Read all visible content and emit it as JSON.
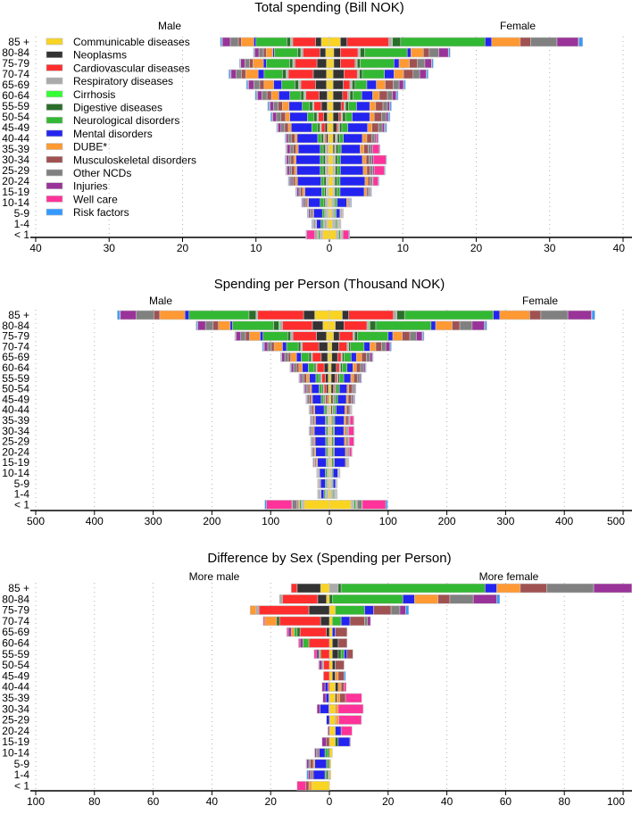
{
  "categories": [
    "Communicable diseases",
    "Neoplasms",
    "Cardiovascular diseases",
    "Respiratory diseases",
    "Cirrhosis",
    "Digestive diseases",
    "Neurological disorders",
    "Mental disorders",
    "DUBE*",
    "Musculoskeletal disorders",
    "Other NCDs",
    "Injuries",
    "Well care",
    "Risk factors"
  ],
  "colors": [
    "#f9d423",
    "#333333",
    "#ff2e2e",
    "#aaaaaa",
    "#33ff33",
    "#2b6e2b",
    "#33b833",
    "#2424f0",
    "#ff9933",
    "#a05252",
    "#808080",
    "#993399",
    "#ff3399",
    "#3399ff"
  ],
  "ages": [
    "85 +",
    "80-84",
    "75-79",
    "70-74",
    "65-69",
    "60-64",
    "55-59",
    "50-54",
    "45-49",
    "40-44",
    "35-39",
    "30-34",
    "25-29",
    "20-24",
    "15-19",
    "10-14",
    "5-9",
    "1-4",
    "< 1"
  ],
  "chart_data": [
    {
      "type": "bar",
      "title": "Total spending (Bill NOK)",
      "left_label": "Male",
      "right_label": "Female",
      "xlim": [
        -40,
        40
      ],
      "tick_labels": [
        "40",
        "30",
        "20",
        "10",
        "0",
        "10",
        "20",
        "30",
        "40"
      ],
      "grid": true,
      "legend": "top-left",
      "male": [
        [
          1.1,
          0.8,
          3.1,
          0.2,
          0.1,
          0.5,
          4.2,
          0.3,
          1.7,
          0.4,
          1.1,
          1.1,
          0.05,
          0.2
        ],
        [
          0.5,
          0.8,
          2.3,
          0.2,
          0.1,
          0.4,
          3.2,
          0.2,
          0.9,
          0.4,
          0.6,
          0.6,
          0.05,
          0.1
        ],
        [
          0.4,
          1.3,
          3.0,
          0.2,
          0.1,
          0.4,
          3.2,
          0.4,
          1.4,
          0.5,
          0.6,
          0.6,
          0.05,
          0.1
        ],
        [
          0.4,
          1.8,
          3.4,
          0.2,
          0.1,
          0.5,
          2.5,
          0.8,
          1.7,
          0.6,
          0.7,
          0.7,
          0.1,
          0.2
        ],
        [
          0.4,
          1.5,
          2.0,
          0.2,
          0.1,
          0.5,
          1.8,
          1.1,
          1.3,
          0.6,
          0.8,
          0.7,
          0.1,
          0.2
        ],
        [
          0.3,
          1.1,
          1.8,
          0.2,
          0.1,
          0.4,
          1.5,
          1.5,
          1.0,
          0.6,
          0.7,
          0.6,
          0.1,
          0.2
        ],
        [
          0.3,
          0.8,
          1.0,
          0.1,
          0.1,
          0.4,
          1.0,
          1.8,
          0.9,
          0.6,
          0.6,
          0.5,
          0.1,
          0.2
        ],
        [
          0.3,
          0.5,
          0.7,
          0.1,
          0.1,
          0.4,
          0.9,
          2.4,
          0.6,
          0.6,
          0.6,
          0.5,
          0.1,
          0.2
        ],
        [
          0.3,
          0.3,
          0.5,
          0.1,
          0.1,
          0.3,
          0.8,
          2.8,
          0.4,
          0.5,
          0.5,
          0.4,
          0.1,
          0.1
        ],
        [
          0.2,
          0.2,
          0.2,
          0.1,
          0.1,
          0.3,
          0.5,
          2.8,
          0.3,
          0.5,
          0.4,
          0.3,
          0.05,
          0.1
        ],
        [
          0.2,
          0.1,
          0.1,
          0.1,
          0.05,
          0.3,
          0.4,
          3.0,
          0.3,
          0.4,
          0.4,
          0.4,
          0.1,
          0.1
        ],
        [
          0.2,
          0.1,
          0.1,
          0.1,
          0.05,
          0.3,
          0.4,
          3.3,
          0.3,
          0.4,
          0.3,
          0.3,
          0.1,
          0.1
        ],
        [
          0.2,
          0.1,
          0.1,
          0.1,
          0.05,
          0.3,
          0.4,
          3.2,
          0.3,
          0.4,
          0.3,
          0.3,
          0.1,
          0.1
        ],
        [
          0.2,
          0.05,
          0.05,
          0.1,
          0.05,
          0.3,
          0.4,
          3.2,
          0.3,
          0.3,
          0.3,
          0.2,
          0.05,
          0.1
        ],
        [
          0.2,
          0.05,
          0.05,
          0.1,
          0.05,
          0.2,
          0.4,
          2.3,
          0.3,
          0.3,
          0.2,
          0.3,
          0.05,
          0.1
        ],
        [
          0.2,
          0.05,
          0.05,
          0.2,
          0.05,
          0.2,
          0.5,
          1.6,
          0.2,
          0.2,
          0.2,
          0.2,
          0.05,
          0.1
        ],
        [
          0.2,
          0.05,
          0.05,
          0.2,
          0.05,
          0.1,
          0.3,
          1.2,
          0.1,
          0.2,
          0.2,
          0.2,
          0.05,
          0.1
        ],
        [
          0.3,
          0.05,
          0.05,
          0.3,
          0.05,
          0.1,
          0.3,
          0.6,
          0.1,
          0.1,
          0.2,
          0.1,
          0.05,
          0.1
        ],
        [
          0.9,
          0.05,
          0.1,
          0.1,
          0.05,
          0.1,
          0.2,
          0.05,
          0.1,
          0.1,
          0.2,
          0.05,
          1.1,
          0.1
        ]
      ],
      "female": [
        [
          1.5,
          0.9,
          5.7,
          0.4,
          0.1,
          1.1,
          11.5,
          0.9,
          3.9,
          1.4,
          3.6,
          2.9,
          0.1,
          0.5
        ],
        [
          0.6,
          0.9,
          2.4,
          0.2,
          0.1,
          0.6,
          5.8,
          0.5,
          1.7,
          0.8,
          1.3,
          1.3,
          0.05,
          0.2
        ],
        [
          0.6,
          0.9,
          2.0,
          0.2,
          0.1,
          0.4,
          4.6,
          0.7,
          1.4,
          1.1,
          1.0,
          0.9,
          0.05,
          0.2
        ],
        [
          0.5,
          1.5,
          1.8,
          0.2,
          0.1,
          0.4,
          3.0,
          1.3,
          1.3,
          1.3,
          0.9,
          0.9,
          0.05,
          0.2
        ],
        [
          0.5,
          1.4,
          0.9,
          0.2,
          0.1,
          0.4,
          1.6,
          1.3,
          1.2,
          1.1,
          0.8,
          0.6,
          0.05,
          0.2
        ],
        [
          0.5,
          1.3,
          0.7,
          0.2,
          0.1,
          0.4,
          1.2,
          1.5,
          0.9,
          1.1,
          0.7,
          0.5,
          0.05,
          0.2
        ],
        [
          0.5,
          1.1,
          0.4,
          0.1,
          0.1,
          0.4,
          1.1,
          1.8,
          0.8,
          1.0,
          0.6,
          0.3,
          0.05,
          0.2
        ],
        [
          0.5,
          0.8,
          0.3,
          0.1,
          0.1,
          0.4,
          0.9,
          2.4,
          0.6,
          1.0,
          0.6,
          0.3,
          0.05,
          0.2
        ],
        [
          0.5,
          0.5,
          0.2,
          0.1,
          0.1,
          0.3,
          0.8,
          2.7,
          0.6,
          0.9,
          0.5,
          0.3,
          0.1,
          0.2
        ],
        [
          0.5,
          0.3,
          0.1,
          0.1,
          0.1,
          0.3,
          0.5,
          2.6,
          0.6,
          0.7,
          0.4,
          0.2,
          0.2,
          0.1
        ],
        [
          0.5,
          0.2,
          0.05,
          0.1,
          0.05,
          0.3,
          0.4,
          2.6,
          0.5,
          0.6,
          0.4,
          0.2,
          0.9,
          0.1
        ],
        [
          0.5,
          0.1,
          0.05,
          0.1,
          0.05,
          0.3,
          0.4,
          3.0,
          0.5,
          0.4,
          0.4,
          0.2,
          1.7,
          0.1
        ],
        [
          0.5,
          0.1,
          0.05,
          0.1,
          0.05,
          0.3,
          0.4,
          3.1,
          0.5,
          0.4,
          0.4,
          0.2,
          1.4,
          0.1
        ],
        [
          0.5,
          0.05,
          0.05,
          0.1,
          0.05,
          0.3,
          0.4,
          3.4,
          0.4,
          0.3,
          0.3,
          0.1,
          0.7,
          0.1
        ],
        [
          0.5,
          0.05,
          0.05,
          0.1,
          0.05,
          0.3,
          0.4,
          3.3,
          0.3,
          0.2,
          0.2,
          0.1,
          0.1,
          0.1
        ],
        [
          0.3,
          0.05,
          0.05,
          0.2,
          0.05,
          0.1,
          0.3,
          1.3,
          0.2,
          0.1,
          0.1,
          0.1,
          0.05,
          0.1
        ],
        [
          0.3,
          0.05,
          0.05,
          0.2,
          0.05,
          0.1,
          0.2,
          0.5,
          0.1,
          0.1,
          0.1,
          0.05,
          0.05,
          0.05
        ],
        [
          0.4,
          0.05,
          0.05,
          0.2,
          0.05,
          0.1,
          0.2,
          0.1,
          0.1,
          0.05,
          0.1,
          0.05,
          0.05,
          0.05
        ],
        [
          0.9,
          0.05,
          0.1,
          0.1,
          0.05,
          0.1,
          0.2,
          0.05,
          0.1,
          0.05,
          0.1,
          0.05,
          0.8,
          0.1
        ]
      ]
    },
    {
      "type": "bar",
      "title": "Spending per Person (Thousand NOK)",
      "left_label": "Male",
      "right_label": "Female",
      "xlim": [
        -500,
        500
      ],
      "tick_labels": [
        "500",
        "400",
        "300",
        "200",
        "100",
        "0",
        "100",
        "200",
        "300",
        "400",
        "500"
      ],
      "grid": true,
      "male": [
        [
          25,
          19,
          78,
          2,
          1,
          12,
          102,
          7,
          43,
          10,
          30,
          27,
          1,
          4
        ],
        [
          11,
          18,
          51,
          4,
          2,
          9,
          70,
          4,
          20,
          9,
          13,
          13,
          1,
          2
        ],
        [
          5,
          17,
          40,
          3,
          1,
          5,
          42,
          5,
          18,
          7,
          8,
          8,
          1,
          1
        ],
        [
          3,
          15,
          28,
          2,
          1,
          4,
          20,
          7,
          14,
          5,
          6,
          6,
          1,
          2
        ],
        [
          3,
          11,
          15,
          1,
          1,
          4,
          13,
          8,
          10,
          4,
          6,
          5,
          1,
          1
        ],
        [
          2,
          7,
          12,
          1,
          1,
          3,
          10,
          10,
          6,
          4,
          5,
          4,
          1,
          1
        ],
        [
          2,
          5,
          6,
          1,
          1,
          2,
          6,
          11,
          5,
          4,
          4,
          3,
          1,
          1
        ],
        [
          2,
          3,
          4,
          1,
          0.5,
          2,
          5,
          13,
          3,
          3,
          3,
          3,
          0.5,
          1
        ],
        [
          2,
          2,
          3,
          0.5,
          0.5,
          2,
          4,
          15,
          2,
          3,
          3,
          2,
          0.5,
          0.5
        ],
        [
          1,
          1,
          1,
          0.5,
          0.5,
          2,
          3,
          16,
          2,
          3,
          2,
          2,
          0.3,
          0.5
        ],
        [
          1,
          0.5,
          0.5,
          0.5,
          0.3,
          2,
          2,
          17,
          2,
          2,
          2,
          2,
          0.5,
          0.5
        ],
        [
          1,
          0.5,
          0.5,
          0.5,
          0.3,
          2,
          2,
          19,
          2,
          2,
          2,
          2,
          0.5,
          0.5
        ],
        [
          1,
          0.3,
          0.3,
          0.5,
          0.3,
          2,
          2,
          18,
          2,
          2,
          2,
          1,
          0.3,
          0.5
        ],
        [
          1,
          0.3,
          0.3,
          0.5,
          0.3,
          2,
          2,
          17,
          2,
          2,
          2,
          1,
          0.3,
          0.5
        ],
        [
          1,
          0.3,
          0.3,
          0.5,
          0.3,
          1,
          2,
          15,
          2,
          2,
          1,
          2,
          0.3,
          0.5
        ],
        [
          1,
          0.3,
          0.3,
          1,
          0.3,
          1,
          3,
          10,
          1,
          1,
          1,
          1,
          0.3,
          0.5
        ],
        [
          1.5,
          0.3,
          0.3,
          1.5,
          0.3,
          1,
          2,
          8,
          1,
          1.5,
          1,
          1,
          0.3,
          0.5
        ],
        [
          2.5,
          0.3,
          0.3,
          2.5,
          0.3,
          1,
          2.5,
          5,
          1,
          1,
          1.5,
          1,
          0.3,
          1
        ],
        [
          43,
          0.5,
          1,
          2,
          0.5,
          1,
          3,
          0.5,
          2,
          2,
          8,
          0.5,
          43,
          3
        ]
      ],
      "female": [
        [
          22,
          11,
          76,
          5,
          1,
          13,
          151,
          11,
          51,
          19,
          46,
          40,
          1,
          5
        ],
        [
          10,
          15,
          39,
          3,
          2,
          10,
          94,
          8,
          28,
          13,
          21,
          21,
          1,
          3
        ],
        [
          7,
          10,
          23,
          2,
          1,
          5,
          52,
          8,
          16,
          13,
          11,
          10,
          1,
          2
        ],
        [
          4,
          12,
          14,
          2,
          1,
          3,
          23,
          10,
          10,
          10,
          7,
          7,
          0.5,
          2
        ],
        [
          4,
          10,
          6,
          1,
          1,
          3,
          12,
          9,
          9,
          8,
          6,
          4,
          0.5,
          1
        ],
        [
          3,
          9,
          5,
          1,
          1,
          3,
          8,
          10,
          6,
          7,
          5,
          3,
          0.5,
          1
        ],
        [
          3,
          7,
          3,
          1,
          0.5,
          3,
          7,
          12,
          5,
          6,
          4,
          2,
          0.3,
          1
        ],
        [
          3,
          4,
          2,
          0.5,
          0.5,
          2,
          5,
          13,
          3,
          6,
          3,
          2,
          0.3,
          1
        ],
        [
          3,
          3,
          1,
          0.5,
          0.5,
          2,
          4,
          15,
          3,
          5,
          3,
          2,
          0.5,
          1
        ],
        [
          3,
          2,
          0.5,
          0.5,
          0.5,
          2,
          3,
          15,
          3,
          4,
          2,
          1,
          1,
          0.5
        ],
        [
          3,
          1,
          0.3,
          0.5,
          0.3,
          2,
          2,
          16,
          3,
          4,
          2,
          1,
          6,
          0.5
        ],
        [
          3,
          0.5,
          0.3,
          0.5,
          0.3,
          2,
          2,
          16,
          3,
          2,
          2,
          1,
          9,
          0.5
        ],
        [
          3,
          0.5,
          0.3,
          0.5,
          0.3,
          2,
          2,
          17,
          3,
          2,
          2,
          1,
          8,
          0.5
        ],
        [
          3,
          0.3,
          0.3,
          0.5,
          0.3,
          2,
          2,
          19,
          2,
          2,
          2,
          0.5,
          4,
          0.5
        ],
        [
          3,
          0.3,
          0.3,
          0.5,
          0.3,
          2,
          2,
          19,
          2,
          1,
          1,
          0.5,
          0.5,
          0.5
        ],
        [
          2,
          0.3,
          0.3,
          1,
          0.3,
          0.5,
          2,
          8,
          1,
          0.5,
          0.5,
          0.5,
          0.3,
          0.5
        ],
        [
          2,
          0.3,
          0.3,
          1.5,
          0.3,
          0.5,
          1.5,
          4,
          0.5,
          0.5,
          0.5,
          0.3,
          0.3,
          0.3
        ],
        [
          3,
          0.3,
          0.3,
          2,
          0.3,
          0.5,
          2,
          1,
          1,
          0.5,
          1,
          0.3,
          0.3,
          0.5
        ],
        [
          37,
          0.5,
          1,
          2,
          0.5,
          1,
          3,
          0.5,
          1,
          1,
          8,
          0.5,
          40,
          3
        ]
      ]
    },
    {
      "type": "bar",
      "title": "Difference by Sex (Spending per Person)",
      "left_label": "More male",
      "right_label": "More female",
      "xlim": [
        -100,
        100
      ],
      "tick_labels": [
        "100",
        "80",
        "60",
        "40",
        "20",
        "0",
        "20",
        "40",
        "60",
        "80",
        "100"
      ],
      "grid": true,
      "values": "female minus male of Spending per Person, per category"
    }
  ]
}
